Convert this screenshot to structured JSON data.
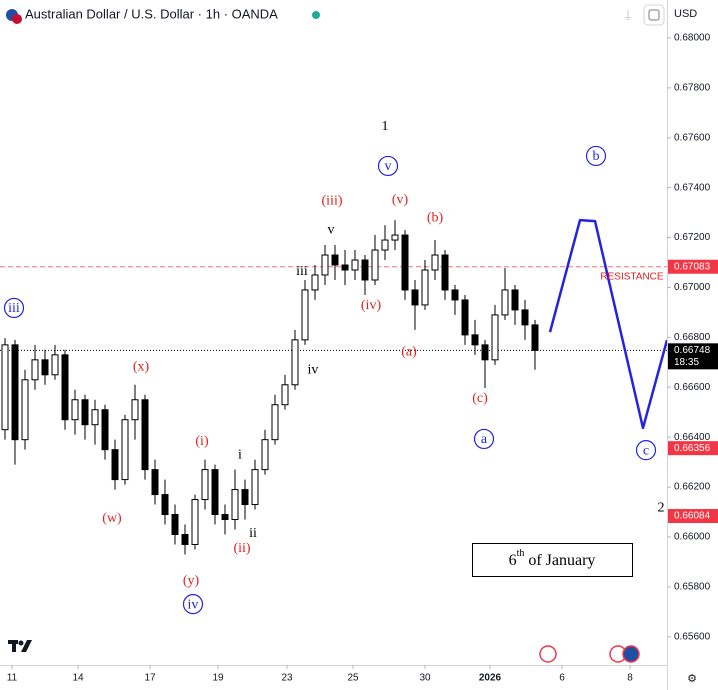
{
  "chart_data": {
    "type": "candlestick",
    "title": "Australian Dollar / U.S. Dollar · 1h · OANDA",
    "currency": "USD",
    "up_color": "#ffffff",
    "down_color": "#000000",
    "wick_color": "#000000",
    "xlim": [
      0,
      66.7
    ],
    "ylim": [
      0.65487,
      0.68152
    ],
    "xticks": [
      {
        "value": 1.2,
        "label": "11"
      },
      {
        "value": 7.8,
        "label": "14"
      },
      {
        "value": 15.0,
        "label": "17"
      },
      {
        "value": 21.8,
        "label": "19"
      },
      {
        "value": 28.7,
        "label": "23"
      },
      {
        "value": 35.3,
        "label": "25"
      },
      {
        "value": 42.5,
        "label": "30"
      },
      {
        "value": 49.0,
        "label": "2026"
      },
      {
        "value": 56.2,
        "label": "6"
      },
      {
        "value": 63.0,
        "label": "8"
      }
    ],
    "yticks": [
      {
        "value": 0.68,
        "label": "0.68000"
      },
      {
        "value": 0.678,
        "label": "0.67800"
      },
      {
        "value": 0.676,
        "label": "0.67600"
      },
      {
        "value": 0.674,
        "label": "0.67400"
      },
      {
        "value": 0.672,
        "label": "0.67200"
      },
      {
        "value": 0.67,
        "label": "0.67000"
      },
      {
        "value": 0.668,
        "label": "0.66800"
      },
      {
        "value": 0.666,
        "label": "0.66600"
      },
      {
        "value": 0.664,
        "label": "0.66400"
      },
      {
        "value": 0.662,
        "label": "0.66200"
      },
      {
        "value": 0.66,
        "label": "0.66000"
      },
      {
        "value": 0.658,
        "label": "0.65800"
      },
      {
        "value": 0.656,
        "label": "0.65600"
      }
    ],
    "x": [
      0.5,
      1.5,
      2.5,
      3.5,
      4.5,
      5.5,
      6.5,
      7.5,
      8.5,
      9.5,
      10.5,
      11.5,
      12.5,
      13.5,
      14.5,
      15.5,
      16.5,
      17.5,
      18.5,
      19.5,
      20.5,
      21.5,
      22.5,
      23.5,
      24.5,
      25.5,
      26.5,
      27.5,
      28.5,
      29.5,
      30.5,
      31.5,
      32.5,
      33.5,
      34.5,
      35.5,
      36.5,
      37.5,
      38.5,
      39.5,
      40.5,
      41.5,
      42.5,
      43.5,
      44.5,
      45.5,
      46.5,
      47.5,
      48.5,
      49.5,
      50.5,
      51.5,
      52.5,
      53.5
    ],
    "open": [
      0.6643,
      0.6677,
      0.6639,
      0.6663,
      0.6671,
      0.6665,
      0.6673,
      0.6647,
      0.6655,
      0.6645,
      0.6651,
      0.6635,
      0.6623,
      0.6647,
      0.6655,
      0.6627,
      0.6617,
      0.6609,
      0.6601,
      0.6597,
      0.6615,
      0.6627,
      0.6609,
      0.6607,
      0.6619,
      0.6613,
      0.6627,
      0.6639,
      0.6653,
      0.6661,
      0.6679,
      0.6699,
      0.6705,
      0.6713,
      0.6709,
      0.6707,
      0.6711,
      0.6703,
      0.6715,
      0.6719,
      0.6721,
      0.6699,
      0.6693,
      0.6707,
      0.6713,
      0.6699,
      0.6695,
      0.6681,
      0.6677,
      0.6671,
      0.6689,
      0.6699,
      0.6691,
      0.6685
    ],
    "high": [
      0.66797,
      0.6679,
      0.6667,
      0.6677,
      0.6675,
      0.6677,
      0.6675,
      0.6659,
      0.6657,
      0.6655,
      0.6653,
      0.6639,
      0.6649,
      0.6661,
      0.6657,
      0.6631,
      0.6623,
      0.6613,
      0.6605,
      0.6617,
      0.6631,
      0.6629,
      0.6613,
      0.6627,
      0.6623,
      0.6631,
      0.6643,
      0.6657,
      0.6665,
      0.6683,
      0.6703,
      0.6709,
      0.6717,
      0.6717,
      0.6715,
      0.6715,
      0.6713,
      0.6721,
      0.6725,
      0.6727,
      0.6723,
      0.6703,
      0.6711,
      0.6719,
      0.6715,
      0.6701,
      0.6697,
      0.6687,
      0.6679,
      0.6693,
      0.67078,
      0.6701,
      0.6695,
      0.6687
    ],
    "low": [
      0.6639,
      0.6629,
      0.6635,
      0.6659,
      0.6661,
      0.6663,
      0.6643,
      0.6641,
      0.6639,
      0.6637,
      0.6631,
      0.6619,
      0.6621,
      0.6639,
      0.6623,
      0.6613,
      0.6605,
      0.6597,
      0.6593,
      0.6595,
      0.6611,
      0.6605,
      0.6601,
      0.6603,
      0.6607,
      0.6611,
      0.6625,
      0.6637,
      0.6651,
      0.6659,
      0.6677,
      0.6695,
      0.6701,
      0.6703,
      0.6701,
      0.6703,
      0.6697,
      0.6701,
      0.6711,
      0.6715,
      0.6695,
      0.6683,
      0.6691,
      0.6703,
      0.6695,
      0.6689,
      0.6677,
      0.6673,
      0.66597,
      0.6669,
      0.6687,
      0.6685,
      0.6679,
      0.6667
    ],
    "close": [
      0.6677,
      0.6639,
      0.6663,
      0.6671,
      0.6665,
      0.6673,
      0.6647,
      0.6655,
      0.6645,
      0.6651,
      0.6635,
      0.6623,
      0.6647,
      0.6655,
      0.6627,
      0.6617,
      0.6609,
      0.6601,
      0.6597,
      0.6615,
      0.6627,
      0.6609,
      0.6607,
      0.6619,
      0.6613,
      0.6627,
      0.6639,
      0.6653,
      0.6661,
      0.6679,
      0.6699,
      0.6705,
      0.6713,
      0.6709,
      0.6707,
      0.6711,
      0.6703,
      0.6715,
      0.6719,
      0.6721,
      0.6699,
      0.6693,
      0.6707,
      0.6713,
      0.6699,
      0.6695,
      0.6681,
      0.6677,
      0.6671,
      0.6689,
      0.6699,
      0.6691,
      0.6685,
      0.66748
    ],
    "projection": {
      "color": "#2323e0",
      "x": [
        55.0,
        58.0,
        59.5,
        64.3,
        66.7
      ],
      "y": [
        0.66821,
        0.6727,
        0.67266,
        0.66437,
        0.66789
      ]
    },
    "price_tags": [
      {
        "value": 0.67083,
        "color": "#f23645",
        "line": "dashed"
      },
      {
        "value": 0.66748,
        "color": "#000000",
        "line": "dotted",
        "countdown": "18:35"
      },
      {
        "value": 0.66356,
        "color": "#f23645"
      },
      {
        "value": 0.66084,
        "color": "#f23645"
      }
    ],
    "annotations": [
      {
        "text": "iii",
        "x": 1.4,
        "y": 0.66918,
        "color": "#2323e0",
        "circled": true
      },
      {
        "text": "(x)",
        "x": 14.1,
        "y": 0.66685,
        "color": "#e02020"
      },
      {
        "text": "(w)",
        "x": 11.2,
        "y": 0.66076,
        "color": "#e02020"
      },
      {
        "text": "(i)",
        "x": 20.2,
        "y": 0.66385,
        "color": "#e02020"
      },
      {
        "text": "(y)",
        "x": 19.1,
        "y": 0.65827,
        "color": "#e02020"
      },
      {
        "text": "iv",
        "x": 19.3,
        "y": 0.65731,
        "color": "#2323e0",
        "circled": true
      },
      {
        "text": "(ii)",
        "x": 24.2,
        "y": 0.65956,
        "color": "#e02020"
      },
      {
        "text": "i",
        "x": 24.0,
        "y": 0.66332,
        "color": "#000000"
      },
      {
        "text": "ii",
        "x": 25.3,
        "y": 0.66016,
        "color": "#000000"
      },
      {
        "text": "iii",
        "x": 30.2,
        "y": 0.67066,
        "color": "#000000"
      },
      {
        "text": "iv",
        "x": 31.3,
        "y": 0.66673,
        "color": "#000000"
      },
      {
        "text": "v",
        "x": 33.1,
        "y": 0.67234,
        "color": "#000000"
      },
      {
        "text": "(iii)",
        "x": 33.2,
        "y": 0.6735,
        "color": "#e02020"
      },
      {
        "text": "1",
        "x": 38.5,
        "y": 0.67647,
        "color": "#000000",
        "large": true
      },
      {
        "text": "v",
        "x": 38.8,
        "y": 0.67487,
        "color": "#2323e0",
        "circled": true
      },
      {
        "text": "(v)",
        "x": 40.0,
        "y": 0.67354,
        "color": "#e02020"
      },
      {
        "text": "(iv)",
        "x": 37.1,
        "y": 0.6693,
        "color": "#e02020"
      },
      {
        "text": "(b)",
        "x": 43.5,
        "y": 0.67282,
        "color": "#e02020"
      },
      {
        "text": "(a)",
        "x": 40.9,
        "y": 0.66745,
        "color": "#e02020"
      },
      {
        "text": "(c)",
        "x": 48.0,
        "y": 0.66557,
        "color": "#e02020"
      },
      {
        "text": "a",
        "x": 48.4,
        "y": 0.66393,
        "color": "#2323e0",
        "circled": true
      },
      {
        "text": "b",
        "x": 59.6,
        "y": 0.67527,
        "color": "#2323e0",
        "circled": true
      },
      {
        "text": "c",
        "x": 64.6,
        "y": 0.66348,
        "color": "#2323e0",
        "circled": true
      },
      {
        "text": "2",
        "x": 66.1,
        "y": 0.6612,
        "color": "#000000",
        "large": true
      },
      {
        "text": "RESISTANCE",
        "x": 63.2,
        "y": 0.67046,
        "color": "#e02020",
        "small": true
      }
    ],
    "note": {
      "main": "6",
      "sup": "th",
      "tail": " of January"
    }
  }
}
